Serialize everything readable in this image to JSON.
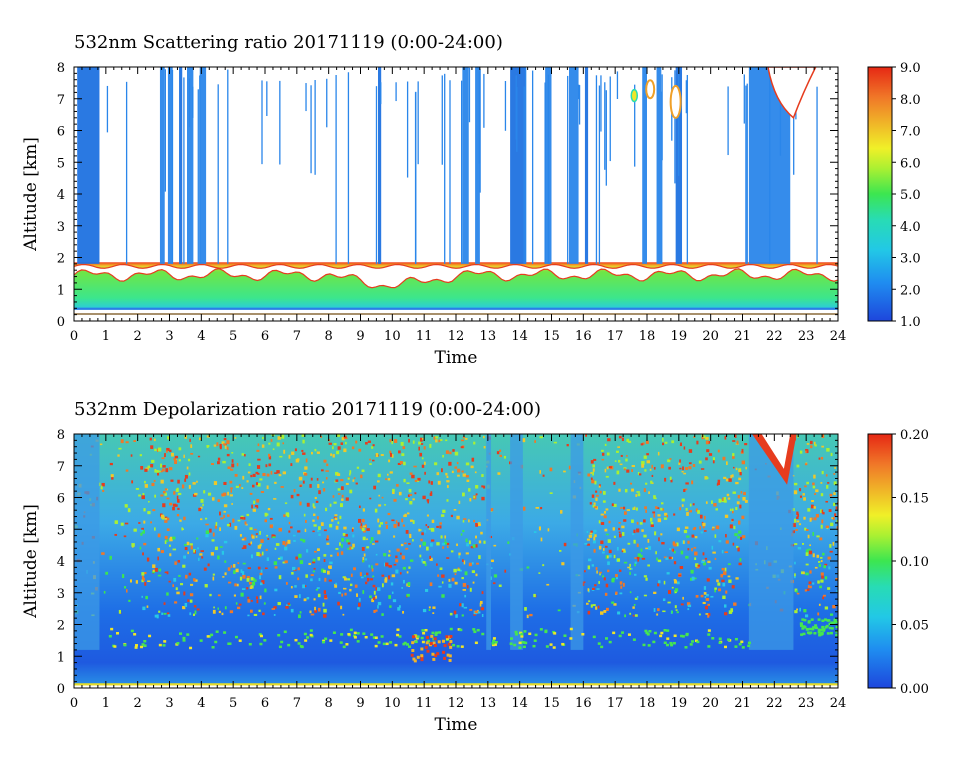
{
  "chart_data": [
    {
      "type": "heatmap",
      "title": "532nm Scattering ratio  20171119 (0:00-24:00)",
      "xlabel": "Time",
      "ylabel": "Altitude [km]",
      "xlim": [
        0,
        24
      ],
      "ylim": [
        0,
        8
      ],
      "x_ticks": [
        "0",
        "1",
        "2",
        "3",
        "4",
        "5",
        "6",
        "7",
        "8",
        "9",
        "10",
        "11",
        "12",
        "13",
        "14",
        "15",
        "16",
        "17",
        "18",
        "19",
        "20",
        "21",
        "22",
        "23",
        "24"
      ],
      "y_ticks": [
        "0",
        "1",
        "2",
        "3",
        "4",
        "5",
        "6",
        "7",
        "8"
      ],
      "colorbar": {
        "range": [
          1.0,
          9.0
        ],
        "ticks": [
          "1.0",
          "2.0",
          "3.0",
          "4.0",
          "5.0",
          "6.0",
          "7.0",
          "8.0",
          "9.0"
        ]
      },
      "features": {
        "boundary_layer_top_km": 1.8,
        "cloud_columns_hours": [
          0.3,
          3.0,
          3.6,
          4.0,
          9.6,
          12.3,
          14.1,
          15.2,
          15.8,
          17.9,
          18.4,
          19.0,
          21.9
        ],
        "high_cloud_hours": [
          21.5,
          23.0
        ]
      }
    },
    {
      "type": "heatmap",
      "title": "532nm Depolarization ratio  20171119 (0:00-24:00)",
      "xlabel": "Time",
      "ylabel": "Altitude [km]",
      "xlim": [
        0,
        24
      ],
      "ylim": [
        0,
        8
      ],
      "x_ticks": [
        "0",
        "1",
        "2",
        "3",
        "4",
        "5",
        "6",
        "7",
        "8",
        "9",
        "10",
        "11",
        "12",
        "13",
        "14",
        "15",
        "16",
        "17",
        "18",
        "19",
        "20",
        "21",
        "22",
        "23",
        "24"
      ],
      "y_ticks": [
        "0",
        "1",
        "2",
        "3",
        "4",
        "5",
        "6",
        "7",
        "8"
      ],
      "colorbar": {
        "range": [
          0.0,
          0.2
        ],
        "ticks": [
          "0.00",
          "0.05",
          "0.10",
          "0.15",
          "0.20"
        ]
      }
    }
  ]
}
